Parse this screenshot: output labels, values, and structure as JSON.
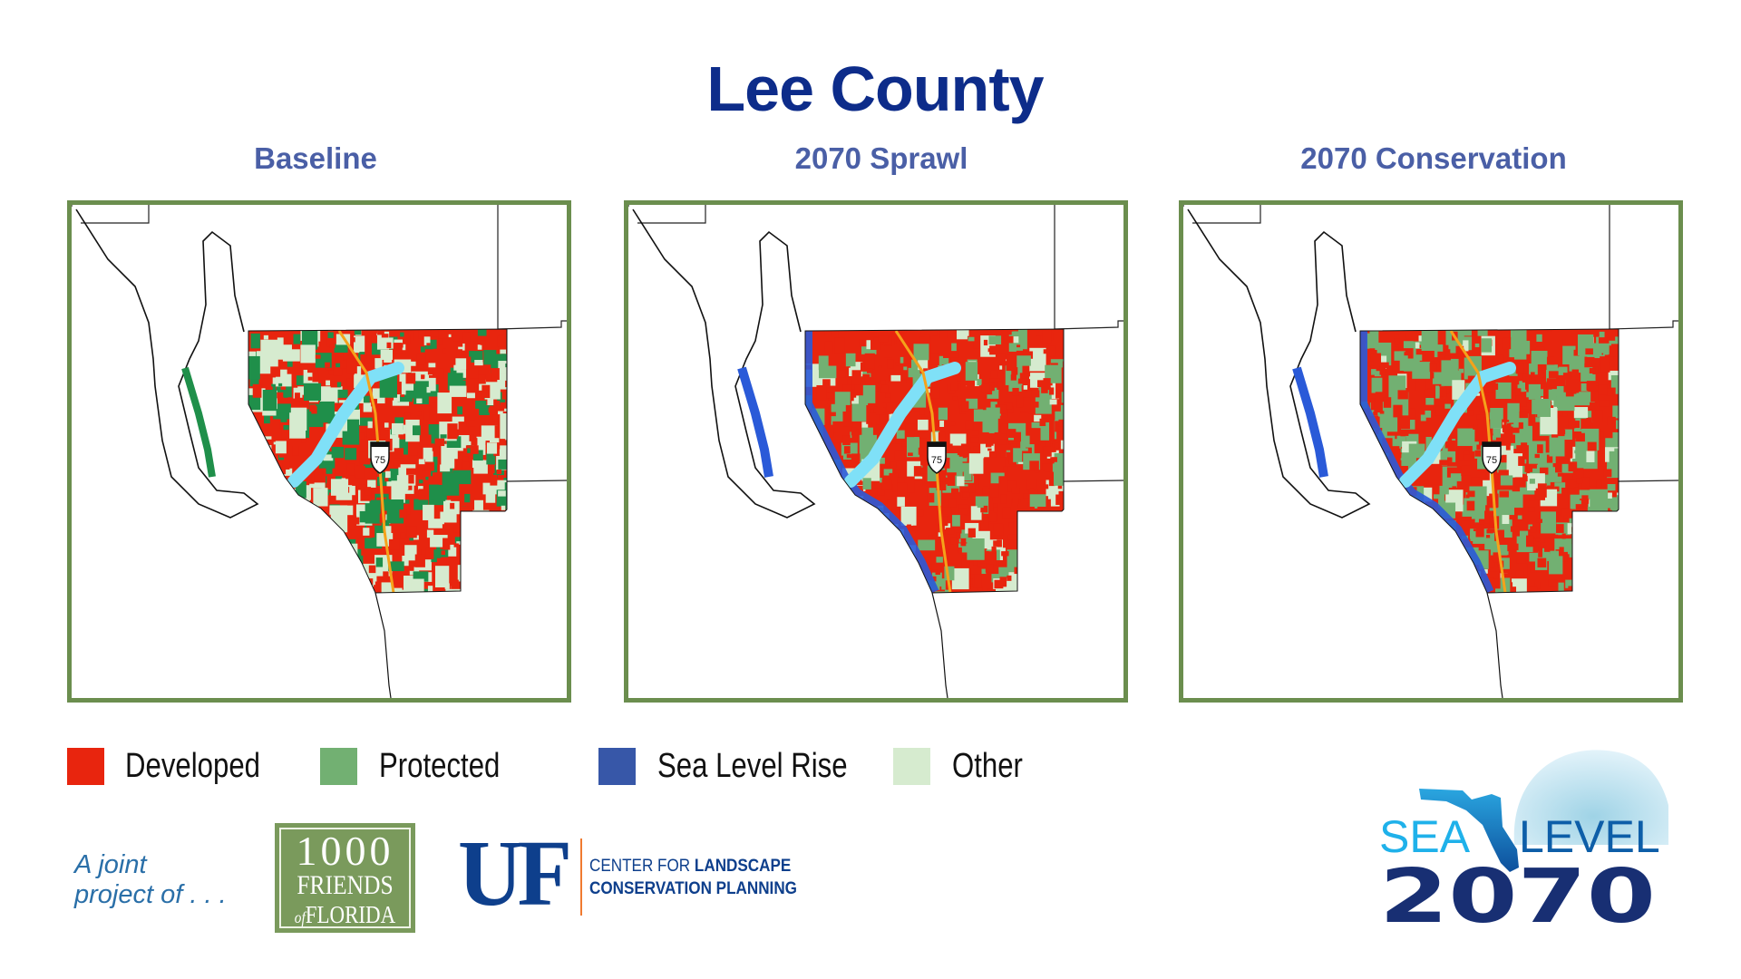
{
  "title": "Lee County",
  "panels": [
    {
      "label": "Baseline",
      "scenario": "baseline"
    },
    {
      "label": "2070 Sprawl",
      "scenario": "sprawl"
    },
    {
      "label": "2070 Conservation",
      "scenario": "conservation"
    }
  ],
  "highway_shield": "75",
  "legend": [
    {
      "label": "Developed",
      "color": "#e8250e"
    },
    {
      "label": "Protected",
      "color": "#72b072"
    },
    {
      "label": "Sea Level Rise",
      "color": "#3757a8"
    },
    {
      "label": "Other",
      "color": "#d6ebcf"
    }
  ],
  "footer": {
    "joint_line1": "A joint",
    "joint_line2": "project of . . .",
    "friends_line1": "1000",
    "friends_line2": "FRIENDS",
    "friends_line3_small": "of",
    "friends_line3": "FLORIDA",
    "uf": "UF",
    "center_line1_light": "CENTER FOR ",
    "center_line1_bold": "LANDSCAPE",
    "center_line2": "CONSERVATION PLANNING"
  },
  "logo": {
    "sea": "SEA",
    "level": "LEVEL",
    "year": "2070"
  }
}
